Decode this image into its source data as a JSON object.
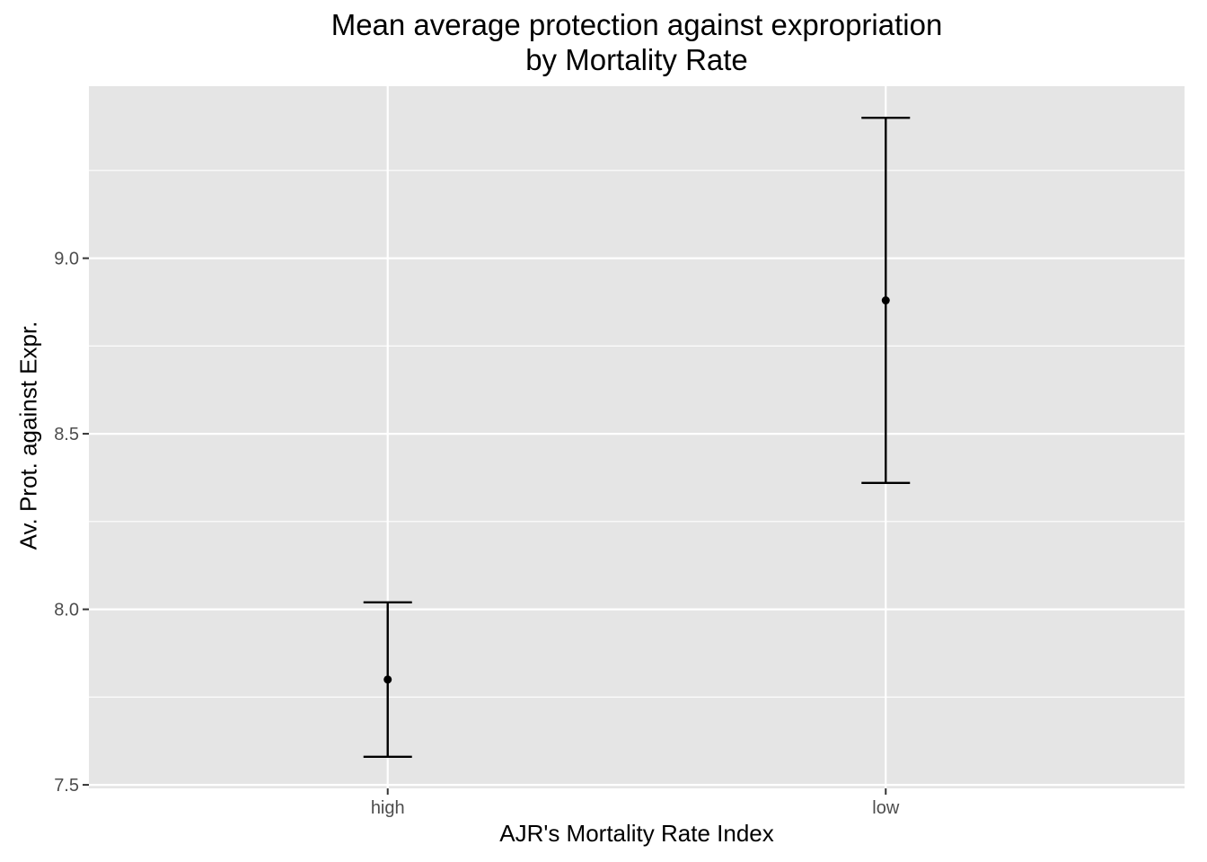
{
  "chart_data": {
    "type": "errorbar",
    "title": "Mean average protection against expropriation\n by Mortality Rate",
    "xlabel": "AJR's Mortality Rate Index",
    "ylabel": "Av. Prot. against Expr.",
    "categories": [
      "high",
      "low"
    ],
    "means": [
      7.8,
      8.88
    ],
    "lower": [
      7.58,
      8.36
    ],
    "upper": [
      8.02,
      9.4
    ],
    "ylim": [
      7.49,
      9.49
    ],
    "yticks": [
      7.5,
      8.0,
      8.5,
      9.0
    ],
    "ytick_labels": [
      "7.5",
      "8.0",
      "8.5",
      "9.0"
    ],
    "grid": true,
    "panel_background": "#e5e5e5",
    "grid_color": "#ffffff",
    "mark_color": "#000000"
  }
}
